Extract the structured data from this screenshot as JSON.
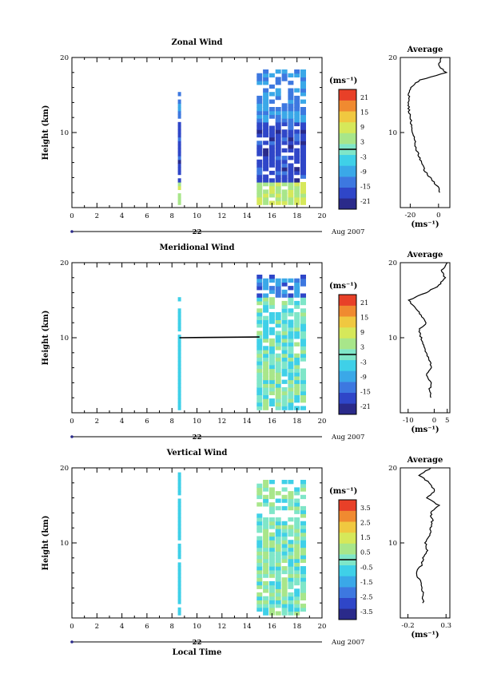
{
  "chart_data": [
    {
      "type": "heatmap",
      "title": "Zonal Wind",
      "ylabel": "Height (km)",
      "ylim": [
        0,
        20
      ],
      "xlim": [
        0,
        20
      ],
      "x_ticks": [
        "0",
        "2",
        "4",
        "6",
        "8",
        "10",
        "12",
        "14",
        "16",
        "18",
        "20"
      ],
      "y_ticks": [
        "10",
        "20"
      ],
      "date_day": "22",
      "date_label": "Aug 2007",
      "colorbar": {
        "unit": "(ms⁻¹)",
        "ticks": [
          "21",
          "15",
          "9",
          "3",
          "-3",
          "-9",
          "-15",
          "-21"
        ]
      },
      "data_columns_hours": [
        8.6,
        15,
        15.5,
        16,
        16.5,
        17,
        17.5,
        18,
        18.5
      ],
      "profile": {
        "title": "Average",
        "xlabel": "(ms⁻¹)",
        "x_ticks": [
          "-20",
          "0"
        ],
        "xlim": [
          -27,
          8
        ],
        "heights_km": [
          2,
          3,
          4,
          5,
          6,
          7,
          8,
          9,
          10,
          11,
          12,
          13,
          14,
          15,
          16,
          17,
          18,
          19,
          20
        ],
        "values": [
          1.5,
          -1.5,
          -6,
          -10,
          -12,
          -14,
          -16,
          -17,
          -18,
          -19,
          -20,
          -21,
          -21,
          -21,
          -20,
          -13,
          5,
          0,
          2
        ]
      }
    },
    {
      "type": "heatmap",
      "title": "Meridional Wind",
      "ylabel": "Height (km)",
      "ylim": [
        0,
        20
      ],
      "xlim": [
        0,
        20
      ],
      "x_ticks": [
        "0",
        "2",
        "4",
        "6",
        "8",
        "10",
        "12",
        "14",
        "16",
        "18",
        "20"
      ],
      "y_ticks": [
        "10",
        "20"
      ],
      "date_day": "22",
      "date_label": "Aug 2007",
      "colorbar": {
        "unit": "(ms⁻¹)",
        "ticks": [
          "21",
          "15",
          "9",
          "3",
          "-3",
          "-9",
          "-15",
          "-21"
        ]
      },
      "data_columns_hours": [
        8.6,
        15,
        15.5,
        16,
        16.5,
        17,
        17.5,
        18,
        18.5
      ],
      "profile": {
        "title": "Average",
        "xlabel": "(ms⁻¹)",
        "x_ticks": [
          "-10",
          "0",
          "5"
        ],
        "xlim": [
          -13,
          6
        ],
        "heights_km": [
          2,
          3,
          4,
          5,
          6,
          7,
          8,
          9,
          10,
          11,
          12,
          13,
          14,
          15,
          16,
          17,
          18,
          19,
          20
        ],
        "values": [
          -1,
          -2,
          -1,
          -3,
          -1,
          -2,
          -3,
          -4,
          -5,
          -6,
          -3,
          -5,
          -7,
          -10,
          -3,
          2,
          4,
          3,
          5
        ]
      }
    },
    {
      "type": "heatmap",
      "title": "Vertical Wind",
      "ylabel": "Height (km)",
      "xlabel": "Local Time",
      "ylim": [
        0,
        20
      ],
      "xlim": [
        0,
        20
      ],
      "x_ticks": [
        "0",
        "2",
        "4",
        "6",
        "8",
        "10",
        "12",
        "14",
        "16",
        "18",
        "20"
      ],
      "y_ticks": [
        "10",
        "20"
      ],
      "date_day": "22",
      "date_label": "Aug 2007",
      "colorbar": {
        "unit": "(ms⁻¹)",
        "ticks": [
          "3.5",
          "2.5",
          "1.5",
          "0.5",
          "-0.5",
          "-1.5",
          "-2.5",
          "-3.5"
        ]
      },
      "data_columns_hours": [
        8.6,
        15,
        15.5,
        16,
        16.5,
        17,
        17.5,
        18,
        18.5
      ],
      "profile": {
        "title": "Average",
        "xlabel": "(ms⁻¹)",
        "x_ticks": [
          "-0.2",
          "0.3"
        ],
        "xlim": [
          -0.3,
          0.35
        ],
        "heights_km": [
          2,
          3,
          4,
          5,
          6,
          7,
          8,
          9,
          10,
          11,
          12,
          13,
          14,
          15,
          16,
          17,
          18,
          19,
          20
        ],
        "values": [
          0.0,
          0.0,
          -0.02,
          -0.04,
          -0.1,
          -0.02,
          0.0,
          0.05,
          0.03,
          0.08,
          0.1,
          0.12,
          0.1,
          0.2,
          0.05,
          0.15,
          0.08,
          -0.05,
          0.1
        ]
      }
    }
  ]
}
